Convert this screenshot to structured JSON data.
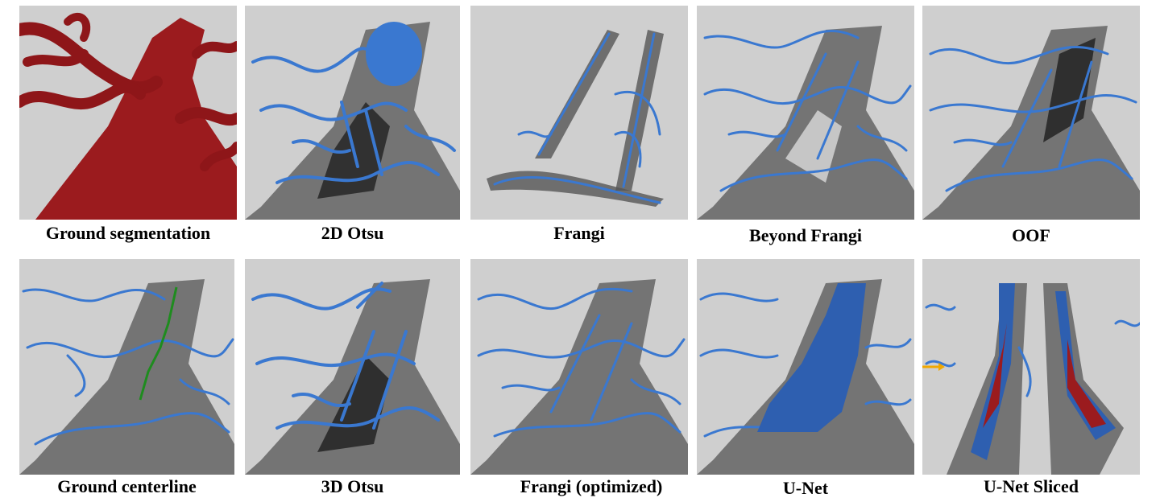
{
  "figure": {
    "panels": [
      {
        "id": "ground-segmentation",
        "caption": "Ground segmentation"
      },
      {
        "id": "2d-otsu",
        "caption": "2D Otsu"
      },
      {
        "id": "frangi",
        "caption": "Frangi"
      },
      {
        "id": "beyond-frangi",
        "caption": "Beyond Frangi"
      },
      {
        "id": "oof",
        "caption": "OOF"
      },
      {
        "id": "ground-centerline",
        "caption": "Ground centerline"
      },
      {
        "id": "3d-otsu",
        "caption": "3D Otsu"
      },
      {
        "id": "frangi-optimized",
        "caption": "Frangi (optimized)"
      },
      {
        "id": "u-net",
        "caption": "U-Net"
      },
      {
        "id": "u-net-sliced",
        "caption": "U-Net Sliced"
      }
    ]
  },
  "colors": {
    "background": "#cfcfcf",
    "vessel_shadow": "#3a3a3a",
    "vessel_blue": "#3a78d0",
    "segmentation_red": "#9b1b1e",
    "centerline_green": "#1e8c1e",
    "arrow_orange": "#f0a800"
  }
}
